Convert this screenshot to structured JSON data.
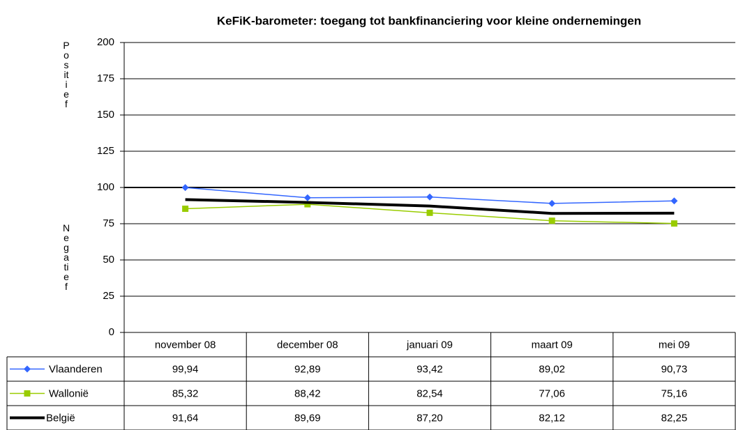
{
  "chart_data": {
    "type": "line",
    "title": "KeFiK-barometer: toegang tot bankfinanciering voor kleine ondernemingen",
    "y_annotations": [
      "Positief",
      "Negatief"
    ],
    "categories": [
      "november 08",
      "december 08",
      "januari 09",
      "maart 09",
      "mei 09"
    ],
    "series": [
      {
        "name": "Vlaanderen",
        "color": "#3366ff",
        "marker": "diamond",
        "line_width": 1.5,
        "values": [
          99.94,
          92.89,
          93.42,
          89.02,
          90.73
        ],
        "value_labels": [
          "99,94",
          "92,89",
          "93,42",
          "89,02",
          "90,73"
        ]
      },
      {
        "name": "Wallonië",
        "color": "#99cc00",
        "marker": "square",
        "line_width": 1.5,
        "values": [
          85.32,
          88.42,
          82.54,
          77.06,
          75.16
        ],
        "value_labels": [
          "85,32",
          "88,42",
          "82,54",
          "77,06",
          "75,16"
        ]
      },
      {
        "name": "België",
        "color": "#000000",
        "marker": null,
        "line_width": 4,
        "values": [
          91.64,
          89.69,
          87.2,
          82.12,
          82.25
        ],
        "value_labels": [
          "91,64",
          "89,69",
          "87,20",
          "82,12",
          "82,25"
        ]
      }
    ],
    "ylim": [
      0,
      200
    ],
    "yticks": [
      0,
      25,
      50,
      75,
      100,
      125,
      150,
      175,
      200
    ],
    "grid": true,
    "reference_line": 100,
    "data_table": true
  }
}
